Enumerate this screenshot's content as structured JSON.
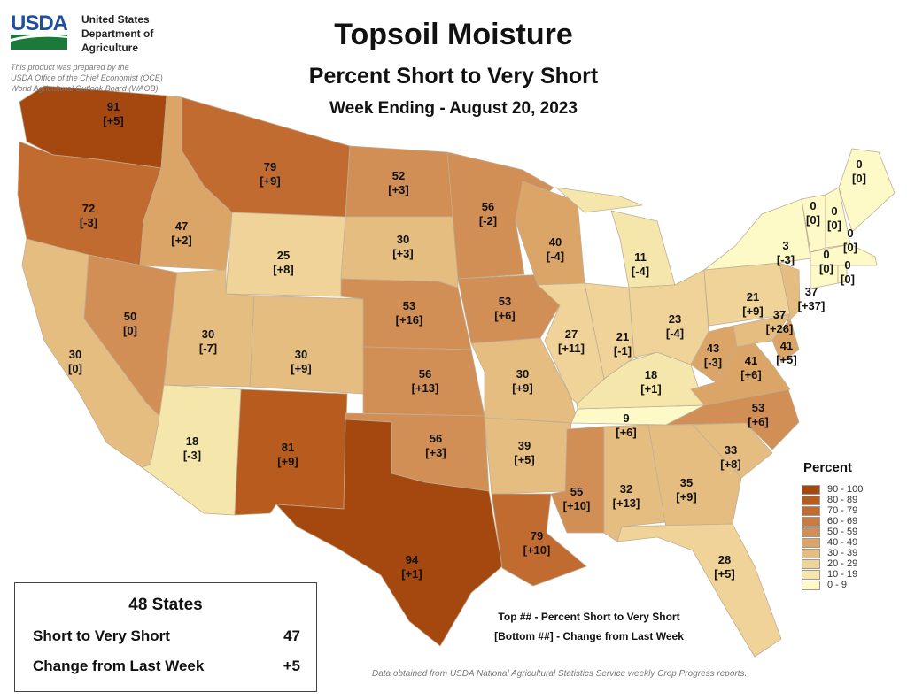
{
  "header": {
    "title": "Topsoil Moisture",
    "subtitle": "Percent Short to Very Short",
    "week": "Week Ending - August 20, 2023"
  },
  "agency": {
    "logo_text": "USDA",
    "line1": "United States",
    "line2": "Department of",
    "line3": "Agriculture",
    "note1": "This product was prepared by the",
    "note2": "USDA Office of the Chief Economist (OCE)",
    "note3": "World Agricultural Outlook Board (WAOB)"
  },
  "legend": {
    "title": "Percent",
    "classes": [
      {
        "label": "90 - 100",
        "color": "#a4480f"
      },
      {
        "label": "80 - 89",
        "color": "#b75b1f"
      },
      {
        "label": "70 - 79",
        "color": "#c26b30"
      },
      {
        "label": "60 - 69",
        "color": "#c97c42"
      },
      {
        "label": "50 - 59",
        "color": "#d18f56"
      },
      {
        "label": "40 - 49",
        "color": "#dca568"
      },
      {
        "label": "30 - 39",
        "color": "#e6bd80"
      },
      {
        "label": "20 - 29",
        "color": "#efd398"
      },
      {
        "label": "10 - 19",
        "color": "#f5e6ab"
      },
      {
        "label": "0 - 9",
        "color": "#fdfac8"
      }
    ]
  },
  "summary": {
    "title": "48 States",
    "row1_label": "Short to Very Short",
    "row1_value": "47",
    "row2_label": "Change from Last Week",
    "row2_value": "+5"
  },
  "key": {
    "top": "Top ## - Percent Short to Very Short",
    "bottom": "[Bottom ##] - Change from Last Week"
  },
  "source": "Data obtained from USDA National Agricultural Statistics Service weekly Crop Progress reports.",
  "states": {
    "WA": {
      "value": "91",
      "change": "[+5]"
    },
    "OR": {
      "value": "72",
      "change": "[-3]"
    },
    "CA": {
      "value": "30",
      "change": "[0]"
    },
    "NV": {
      "value": "50",
      "change": "[0]"
    },
    "ID": {
      "value": "47",
      "change": "[+2]"
    },
    "MT": {
      "value": "79",
      "change": "[+9]"
    },
    "WY": {
      "value": "25",
      "change": "[+8]"
    },
    "UT": {
      "value": "30",
      "change": "[-7]"
    },
    "CO": {
      "value": "30",
      "change": "[+9]"
    },
    "AZ": {
      "value": "18",
      "change": "[-3]"
    },
    "NM": {
      "value": "81",
      "change": "[+9]"
    },
    "ND": {
      "value": "52",
      "change": "[+3]"
    },
    "SD": {
      "value": "30",
      "change": "[+3]"
    },
    "NE": {
      "value": "53",
      "change": "[+16]"
    },
    "KS": {
      "value": "56",
      "change": "[+13]"
    },
    "OK": {
      "value": "56",
      "change": "[+3]"
    },
    "TX": {
      "value": "94",
      "change": "[+1]"
    },
    "MN": {
      "value": "56",
      "change": "[-2]"
    },
    "IA": {
      "value": "53",
      "change": "[+6]"
    },
    "MO": {
      "value": "30",
      "change": "[+9]"
    },
    "AR": {
      "value": "39",
      "change": "[+5]"
    },
    "LA": {
      "value": "79",
      "change": "[+10]"
    },
    "MS": {
      "value": "55",
      "change": "[+10]"
    },
    "AL": {
      "value": "32",
      "change": "[+13]"
    },
    "GA": {
      "value": "35",
      "change": "[+9]"
    },
    "FL": {
      "value": "28",
      "change": "[+5]"
    },
    "SC": {
      "value": "33",
      "change": "[+8]"
    },
    "NC": {
      "value": "53",
      "change": "[+6]"
    },
    "TN": {
      "value": "9",
      "change": "[+6]"
    },
    "KY": {
      "value": "18",
      "change": "[+1]"
    },
    "WI": {
      "value": "40",
      "change": "[-4]"
    },
    "MI": {
      "value": "11",
      "change": "[-4]"
    },
    "IL": {
      "value": "27",
      "change": "[+11]"
    },
    "IN": {
      "value": "21",
      "change": "[-1]"
    },
    "OH": {
      "value": "23",
      "change": "[-4]"
    },
    "WV": {
      "value": "43",
      "change": "[-3]"
    },
    "VA": {
      "value": "41",
      "change": "[+6]"
    },
    "PA": {
      "value": "21",
      "change": "[+9]"
    },
    "NJ": {
      "value": "37",
      "change": "[+37]"
    },
    "MD": {
      "value": "37",
      "change": "[+26]"
    },
    "DE": {
      "value": "41",
      "change": "[+5]"
    },
    "NY": {
      "value": "3",
      "change": "[-3]"
    },
    "VT": {
      "value": "0",
      "change": "[0]"
    },
    "NH": {
      "value": "0",
      "change": "[0]"
    },
    "ME": {
      "value": "0",
      "change": "[0]"
    },
    "MA": {
      "value": "0",
      "change": "[0]"
    },
    "CT": {
      "value": "0",
      "change": "[0]"
    },
    "RI": {
      "value": "0",
      "change": "[0]"
    }
  }
}
